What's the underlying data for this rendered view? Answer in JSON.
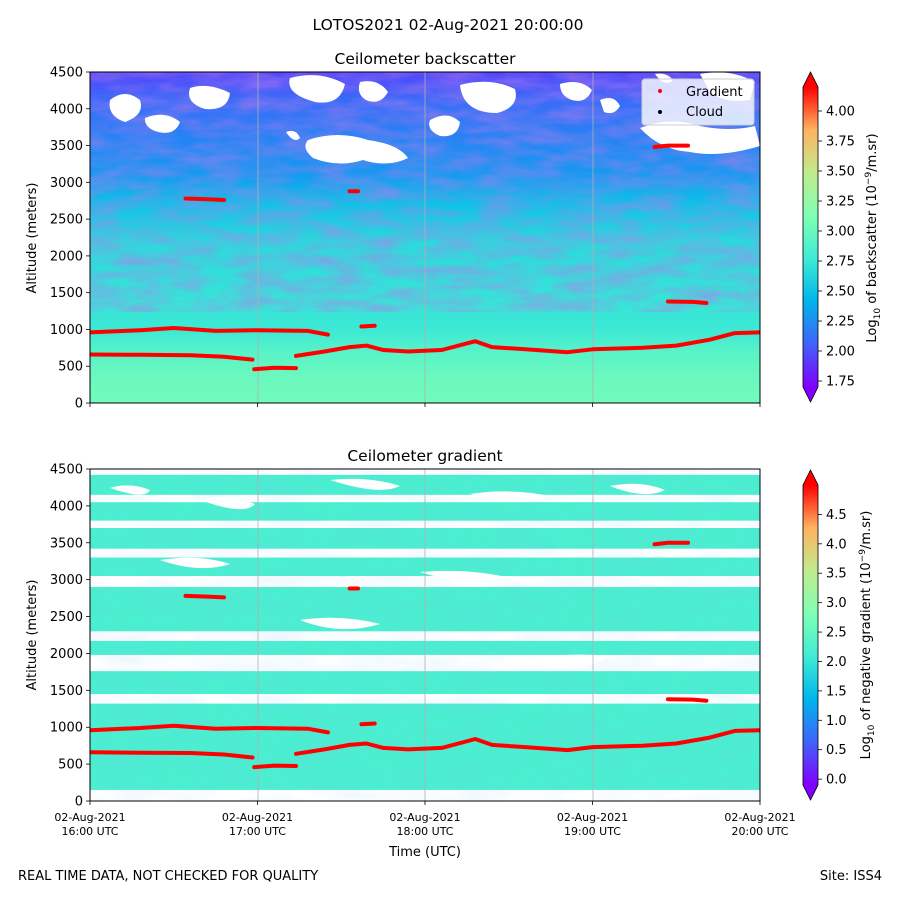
{
  "figure": {
    "suptitle": "LOTOS2021 02-Aug-2021 20:00:00",
    "footer_left": "REAL TIME DATA, NOT CHECKED FOR QUALITY",
    "footer_right": "Site: ISS4"
  },
  "chart_data": [
    {
      "type": "heatmap",
      "title": "Ceilometer backscatter",
      "ylabel": "Altitude (meters)",
      "ylim": [
        0,
        4500
      ],
      "yticks": [
        0,
        500,
        1000,
        1500,
        2000,
        2500,
        3000,
        3500,
        4000,
        4500
      ],
      "x_hours_utc": [
        16,
        20
      ],
      "grid": "vertical",
      "colorbar": {
        "label_prefix": "Log",
        "label_sub": "10",
        "label_mid": " of backscatter (10",
        "label_sup": "−9",
        "label_end": "/m.sr)",
        "range": [
          1.7,
          4.2
        ],
        "ticks": [
          "1.75",
          "2.00",
          "2.25",
          "2.50",
          "2.75",
          "3.00",
          "3.25",
          "3.50",
          "3.75",
          "4.00"
        ],
        "tick_values": [
          1.75,
          2.0,
          2.25,
          2.5,
          2.75,
          3.0,
          3.25,
          3.5,
          3.75,
          4.0
        ],
        "colormap": "rainbow",
        "extend": "both"
      },
      "field_profile": [
        {
          "alt": 0,
          "value": 3.05
        },
        {
          "alt": 400,
          "value": 3.0
        },
        {
          "alt": 700,
          "value": 2.9
        },
        {
          "alt": 1000,
          "value": 2.75
        },
        {
          "alt": 1600,
          "value": 2.7
        },
        {
          "alt": 2200,
          "value": 2.65
        },
        {
          "alt": 2700,
          "value": 2.5
        },
        {
          "alt": 3100,
          "value": 2.3
        },
        {
          "alt": 3600,
          "value": 2.2
        },
        {
          "alt": 4100,
          "value": 2.1
        },
        {
          "alt": 4500,
          "value": 1.95
        }
      ],
      "legend": {
        "placement": "top-right",
        "entries": [
          {
            "label": "Gradient",
            "color": "#ff0000"
          },
          {
            "label": "Cloud",
            "color": "#000000"
          }
        ]
      }
    },
    {
      "type": "heatmap",
      "title": "Ceilometer gradient",
      "ylabel": "Altitude (meters)",
      "xlabel": "Time (UTC)",
      "ylim": [
        0,
        4500
      ],
      "yticks": [
        0,
        500,
        1000,
        1500,
        2000,
        2500,
        3000,
        3500,
        4000,
        4500
      ],
      "x_hours_utc": [
        16,
        20
      ],
      "grid": "vertical",
      "xticks": [
        {
          "hour": 16,
          "date": "02-Aug-2021",
          "time": "16:00 UTC"
        },
        {
          "hour": 17,
          "date": "02-Aug-2021",
          "time": "17:00 UTC"
        },
        {
          "hour": 18,
          "date": "02-Aug-2021",
          "time": "18:00 UTC"
        },
        {
          "hour": 19,
          "date": "02-Aug-2021",
          "time": "19:00 UTC"
        },
        {
          "hour": 20,
          "date": "02-Aug-2021",
          "time": "20:00 UTC"
        }
      ],
      "colorbar": {
        "label_prefix": "Log",
        "label_sub": "10",
        "label_mid": " of negative gradient (10",
        "label_sup": "−9",
        "label_end": "/m.sr)",
        "range": [
          -0.1,
          5.0
        ],
        "ticks": [
          "0.0",
          "0.5",
          "1.0",
          "1.5",
          "2.0",
          "2.5",
          "3.0",
          "3.5",
          "4.0",
          "4.5"
        ],
        "tick_values": [
          0.0,
          0.5,
          1.0,
          1.5,
          2.0,
          2.5,
          3.0,
          3.5,
          4.0,
          4.5
        ],
        "colormap": "rainbow",
        "extend": "both"
      },
      "field_value": 2.2,
      "field_floor_alt": 150,
      "bands": [
        {
          "alt_min": 150,
          "alt_max": 1320
        },
        {
          "alt_min": 1450,
          "alt_max": 1760
        },
        {
          "alt_min": 1980,
          "alt_max": 2170
        },
        {
          "alt_min": 2300,
          "alt_max": 2900
        },
        {
          "alt_min": 3050,
          "alt_max": 3300
        },
        {
          "alt_min": 3420,
          "alt_max": 3700
        },
        {
          "alt_min": 3800,
          "alt_max": 4050
        },
        {
          "alt_min": 4150,
          "alt_max": 4420
        }
      ]
    }
  ],
  "gradient_layers": [
    {
      "name": "boundary-layer-lower",
      "points": [
        {
          "t": 16.0,
          "alt": 660
        },
        {
          "t": 16.3,
          "alt": 655
        },
        {
          "t": 16.6,
          "alt": 650
        },
        {
          "t": 16.8,
          "alt": 630
        },
        {
          "t": 16.97,
          "alt": 590
        }
      ]
    },
    {
      "name": "boundary-layer-dip",
      "points": [
        {
          "t": 16.98,
          "alt": 460
        },
        {
          "t": 17.1,
          "alt": 480
        },
        {
          "t": 17.23,
          "alt": 475
        }
      ]
    },
    {
      "name": "boundary-layer-upper",
      "points": [
        {
          "t": 17.23,
          "alt": 640
        },
        {
          "t": 17.4,
          "alt": 700
        },
        {
          "t": 17.55,
          "alt": 760
        },
        {
          "t": 17.65,
          "alt": 780
        },
        {
          "t": 17.75,
          "alt": 720
        },
        {
          "t": 17.9,
          "alt": 700
        },
        {
          "t": 18.1,
          "alt": 720
        },
        {
          "t": 18.3,
          "alt": 840
        },
        {
          "t": 18.4,
          "alt": 760
        },
        {
          "t": 18.6,
          "alt": 730
        },
        {
          "t": 18.85,
          "alt": 690
        },
        {
          "t": 19.0,
          "alt": 730
        },
        {
          "t": 19.3,
          "alt": 750
        },
        {
          "t": 19.5,
          "alt": 780
        },
        {
          "t": 19.7,
          "alt": 860
        },
        {
          "t": 19.85,
          "alt": 950
        },
        {
          "t": 20.0,
          "alt": 960
        }
      ]
    },
    {
      "name": "residual-layer",
      "points": [
        {
          "t": 16.0,
          "alt": 960
        },
        {
          "t": 16.3,
          "alt": 990
        },
        {
          "t": 16.5,
          "alt": 1020
        },
        {
          "t": 16.75,
          "alt": 980
        },
        {
          "t": 17.0,
          "alt": 990
        },
        {
          "t": 17.3,
          "alt": 980
        },
        {
          "t": 17.42,
          "alt": 930
        }
      ]
    },
    {
      "name": "layer-1050",
      "points": [
        {
          "t": 17.62,
          "alt": 1040
        },
        {
          "t": 17.7,
          "alt": 1050
        }
      ]
    },
    {
      "name": "layer-1380",
      "points": [
        {
          "t": 19.45,
          "alt": 1380
        },
        {
          "t": 19.6,
          "alt": 1375
        },
        {
          "t": 19.68,
          "alt": 1360
        }
      ]
    },
    {
      "name": "layer-2770",
      "points": [
        {
          "t": 16.57,
          "alt": 2780
        },
        {
          "t": 16.7,
          "alt": 2770
        },
        {
          "t": 16.8,
          "alt": 2760
        }
      ]
    },
    {
      "name": "layer-2880",
      "points": [
        {
          "t": 17.55,
          "alt": 2880
        },
        {
          "t": 17.6,
          "alt": 2880
        }
      ]
    },
    {
      "name": "layer-3480",
      "points": [
        {
          "t": 19.37,
          "alt": 3480
        },
        {
          "t": 19.45,
          "alt": 3500
        },
        {
          "t": 19.57,
          "alt": 3500
        }
      ]
    }
  ]
}
